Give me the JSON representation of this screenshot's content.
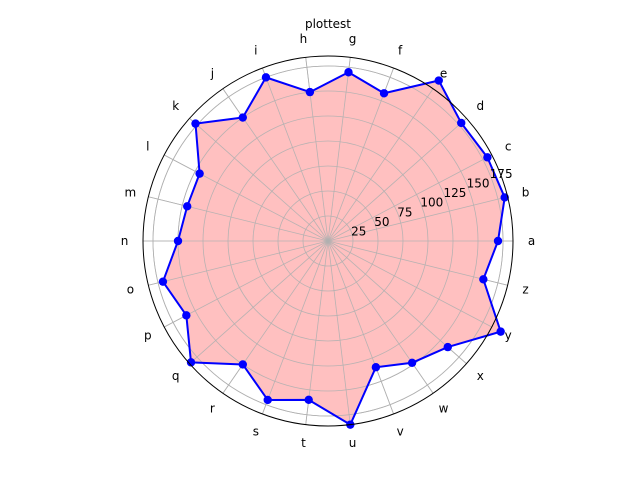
{
  "chart_data": {
    "type": "radar",
    "title": "plottest",
    "categories": [
      "a",
      "b",
      "c",
      "d",
      "e",
      "f",
      "g",
      "h",
      "i",
      "j",
      "k",
      "l",
      "m",
      "n",
      "o",
      "p",
      "q",
      "r",
      "s",
      "t",
      "u",
      "v",
      "w",
      "x",
      "y",
      "z"
    ],
    "series": [
      {
        "values": [
          170,
          182,
          180,
          178,
          195,
          158,
          170,
          150,
          175,
          150,
          177,
          145,
          145,
          150,
          170,
          160,
          183,
          150,
          170,
          160,
          185,
          135,
          148,
          160,
          195,
          160
        ]
      }
    ],
    "radial_ticks": [
      25,
      50,
      75,
      100,
      125,
      150,
      175
    ],
    "rlim": [
      0,
      185
    ],
    "grid": true,
    "colors": {
      "line": "#0000ff",
      "marker": "#0000ff",
      "fill": "#ffc0c0",
      "grid": "#b0b0b0",
      "frame": "#000000"
    }
  }
}
